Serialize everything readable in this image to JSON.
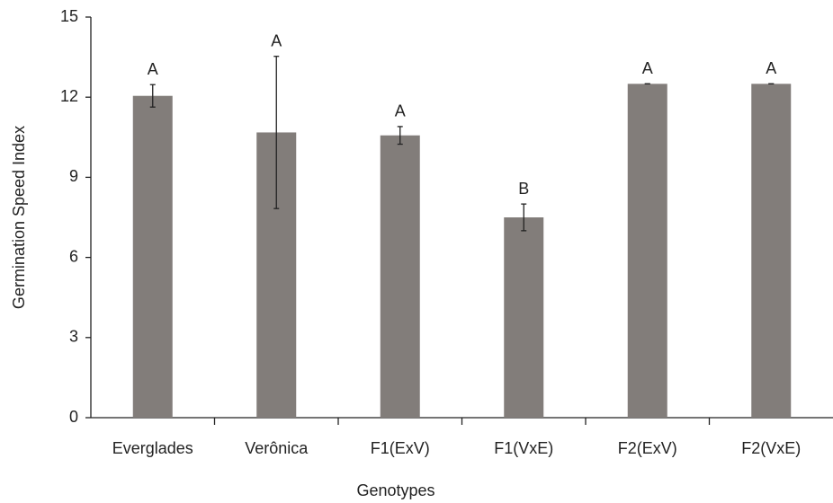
{
  "chart_data": {
    "type": "bar",
    "x_label": "Genotypes",
    "y_label": "Germination Speed Index",
    "categories": [
      "Everglades",
      "Verônica",
      "F1(ExV)",
      "F1(VxE)",
      "F2(ExV)",
      "F2(VxE)"
    ],
    "values": [
      12.05,
      10.68,
      10.57,
      7.5,
      12.5,
      12.5
    ],
    "errors": [
      0.42,
      2.85,
      0.33,
      0.5,
      0,
      0
    ],
    "letters": [
      "A",
      "A",
      "A",
      "B",
      "A",
      "A"
    ],
    "color": "#827d7a",
    "ylim": [
      0,
      15
    ],
    "yticks": [
      0,
      3,
      6,
      9,
      12,
      15
    ],
    "grid": false
  }
}
